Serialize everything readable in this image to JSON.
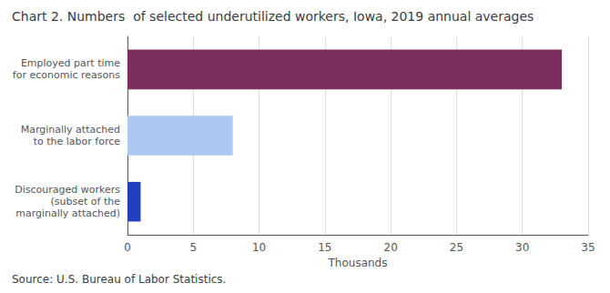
{
  "chart_data": {
    "type": "bar",
    "orientation": "horizontal",
    "title": "Chart 2. Numbers  of selected underutilized workers, Iowa, 2019 annual averages",
    "source": "Source: U.S. Bureau of Labor Statistics.",
    "categories": [
      "Discouraged workers\n(subset of the\nmarginally attached)",
      "Marginally attached\nto the labor force",
      "Employed part time\nfor economic reasons"
    ],
    "values": [
      1.0,
      8.0,
      33.0
    ],
    "colors": [
      "#2040c0",
      "#aac8f0",
      "#7b2d5e"
    ],
    "xlabel": "Thousands",
    "xlim": [
      0,
      35
    ],
    "xticks": [
      0,
      5,
      10,
      15,
      20,
      25,
      30,
      35
    ],
    "grid": true
  }
}
